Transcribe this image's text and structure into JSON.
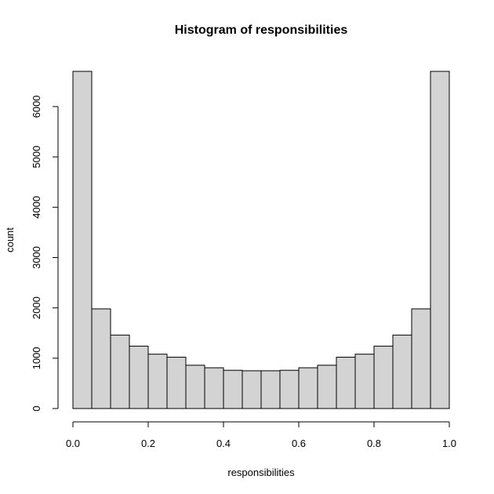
{
  "chart_data": {
    "type": "bar",
    "title": "Histogram of responsibilities",
    "xlabel": "responsibilities",
    "ylabel": "count",
    "bin_edges": [
      0.0,
      0.05,
      0.1,
      0.15,
      0.2,
      0.25,
      0.3,
      0.35,
      0.4,
      0.45,
      0.5,
      0.55,
      0.6,
      0.65,
      0.7,
      0.75,
      0.8,
      0.85,
      0.9,
      0.95,
      1.0
    ],
    "values": [
      6700,
      1980,
      1460,
      1240,
      1080,
      1020,
      860,
      810,
      760,
      750,
      750,
      760,
      810,
      860,
      1020,
      1080,
      1240,
      1460,
      1980,
      6700
    ],
    "xlim": [
      0,
      1
    ],
    "ylim": [
      0,
      6700
    ],
    "x_ticks": [
      0.0,
      0.2,
      0.4,
      0.6,
      0.8,
      1.0
    ],
    "x_tick_labels": [
      "0.0",
      "0.2",
      "0.4",
      "0.6",
      "0.8",
      "1.0"
    ],
    "y_ticks": [
      0,
      1000,
      2000,
      3000,
      4000,
      5000,
      6000
    ],
    "y_tick_labels": [
      "0",
      "1000",
      "2000",
      "3000",
      "4000",
      "5000",
      "6000"
    ],
    "grid": false,
    "colors": {
      "bar_fill": "#d3d3d3",
      "bar_stroke": "#000000"
    }
  }
}
